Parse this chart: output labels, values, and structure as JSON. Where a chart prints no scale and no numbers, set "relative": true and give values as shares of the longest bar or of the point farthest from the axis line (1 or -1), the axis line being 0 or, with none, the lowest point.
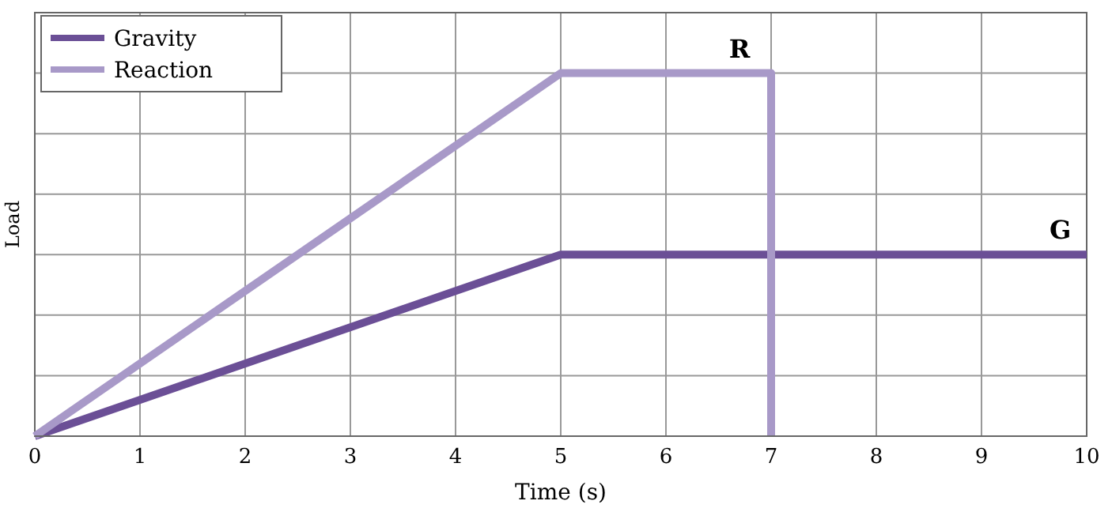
{
  "chart_data": {
    "type": "line",
    "xlabel": "Time (s)",
    "ylabel": "Load",
    "relative": true,
    "xlim": [
      0,
      10
    ],
    "xticks": [
      0,
      1,
      2,
      3,
      4,
      5,
      6,
      7,
      8,
      9,
      10
    ],
    "grid": true,
    "legend": "top left",
    "line_style": "solid",
    "marker": "none",
    "series": [
      {
        "name": "Gravity",
        "color": "#6b4f96",
        "x": [
          0,
          5,
          10
        ],
        "values": [
          0,
          0.5,
          0.5
        ]
      },
      {
        "name": "Reaction",
        "color": "#a899c8",
        "x": [
          0,
          5,
          7,
          7
        ],
        "values": [
          0,
          1,
          1,
          0
        ]
      }
    ],
    "annotations": [
      {
        "text": "R",
        "x": 6.7,
        "y": 1
      },
      {
        "text": "G",
        "x": 9.75,
        "y": 0.5
      }
    ]
  }
}
